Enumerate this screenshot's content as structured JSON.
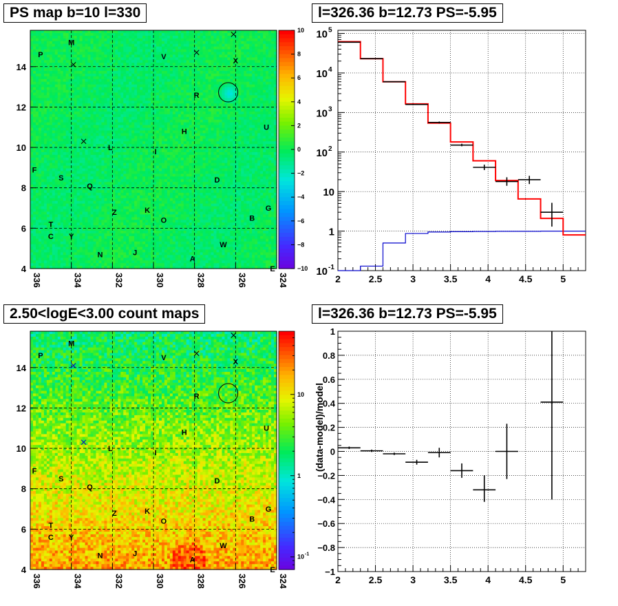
{
  "colors": {
    "data": "#000000",
    "model": "#ff0000",
    "background_model": "#0000cc",
    "circle": "#000000"
  },
  "panels": {
    "ps_map": {
      "title": "PS map b=10 l=330",
      "x_ticks": [
        "336",
        "334",
        "332",
        "330",
        "328",
        "326",
        "324"
      ],
      "y_ticks": [
        "4",
        "6",
        "8",
        "10",
        "12",
        "14"
      ],
      "xlim": [
        336,
        324
      ],
      "ylim": [
        4,
        15.8
      ],
      "colorbar": {
        "scale": "linear",
        "range": [
          -10,
          10
        ],
        "tick_labels": [
          "10",
          "8",
          "6",
          "4",
          "2",
          "0",
          "−2",
          "−4",
          "−6",
          "−8",
          "−10"
        ]
      }
    },
    "count_map": {
      "title": "2.50<logE<3.00 count maps",
      "x_ticks": [
        "336",
        "334",
        "332",
        "330",
        "328",
        "326",
        "324"
      ],
      "y_ticks": [
        "4",
        "6",
        "8",
        "10",
        "12",
        "14"
      ],
      "xlim": [
        336,
        324
      ],
      "ylim": [
        4,
        15.8
      ],
      "colorbar": {
        "scale": "log",
        "range": [
          0.07,
          60
        ],
        "tick_labels": [
          "10",
          "1",
          "10"
        ],
        "tick_exponents": [
          "",
          "",
          "-1"
        ]
      }
    },
    "spectrum": {
      "title": "l=326.36 b=12.73 PS=-5.95"
    },
    "residual": {
      "title": "l=326.36 b=12.73 PS=-5.95",
      "ylabel": "(data-model)/model"
    }
  },
  "sources": [
    {
      "label": "M",
      "l": 334.0,
      "b": 15.2
    },
    {
      "label": "P",
      "l": 335.5,
      "b": 14.6
    },
    {
      "label": "V",
      "l": 329.5,
      "b": 14.5
    },
    {
      "label": "X",
      "l": 326.0,
      "b": 14.3
    },
    {
      "label": "R",
      "l": 327.9,
      "b": 12.6
    },
    {
      "label": "H",
      "l": 328.5,
      "b": 10.8
    },
    {
      "label": "U",
      "l": 324.5,
      "b": 11.0
    },
    {
      "label": "L",
      "l": 332.1,
      "b": 10.0
    },
    {
      "label": "I",
      "l": 329.9,
      "b": 9.8
    },
    {
      "label": "F",
      "l": 335.8,
      "b": 8.9
    },
    {
      "label": "S",
      "l": 334.5,
      "b": 8.5
    },
    {
      "label": "Q",
      "l": 333.1,
      "b": 8.1
    },
    {
      "label": "D",
      "l": 326.9,
      "b": 8.4
    },
    {
      "label": "G",
      "l": 324.4,
      "b": 7.0
    },
    {
      "label": "Z",
      "l": 331.9,
      "b": 6.8
    },
    {
      "label": "K",
      "l": 330.3,
      "b": 6.9
    },
    {
      "label": "O",
      "l": 329.5,
      "b": 6.4
    },
    {
      "label": "B",
      "l": 325.2,
      "b": 6.5
    },
    {
      "label": "T",
      "l": 335.0,
      "b": 6.2
    },
    {
      "label": "C",
      "l": 335.0,
      "b": 5.6
    },
    {
      "label": "Y",
      "l": 334.0,
      "b": 5.6
    },
    {
      "label": "W",
      "l": 326.6,
      "b": 5.2
    },
    {
      "label": "N",
      "l": 332.6,
      "b": 4.7
    },
    {
      "label": "J",
      "l": 330.9,
      "b": 4.8
    },
    {
      "label": "A",
      "l": 328.1,
      "b": 4.5
    },
    {
      "label": "E",
      "l": 324.2,
      "b": 4.0
    }
  ],
  "crosses": [
    {
      "l": 333.9,
      "b": 14.1
    },
    {
      "l": 327.9,
      "b": 14.7
    },
    {
      "l": 326.1,
      "b": 15.6
    },
    {
      "l": 333.4,
      "b": 10.3
    }
  ],
  "highlight_circle": {
    "l": 326.36,
    "b": 12.73
  },
  "chart_data": [
    {
      "type": "line",
      "panel": "spectrum",
      "title": "l=326.36 b=12.73 PS=-5.95",
      "xlabel": "",
      "ylabel": "",
      "xlim": [
        2,
        5.3
      ],
      "ylim": [
        0.1,
        120000
      ],
      "y_scale": "log",
      "grid": true,
      "x_ticks": [
        "2",
        "2.5",
        "3",
        "3.5",
        "4",
        "4.5",
        "5"
      ],
      "y_ticks": [
        "10^-1",
        "1",
        "10",
        "10^2",
        "10^3",
        "10^4",
        "10^5"
      ],
      "series": [
        {
          "points": [
            {
              "x": 2.15,
              "y": 60000,
              "xerr": 0.15,
              "ylo": 59000,
              "yhi": 61000
            },
            {
              "x": 2.45,
              "y": 23000,
              "xerr": 0.15,
              "ylo": 22700,
              "yhi": 23300
            },
            {
              "x": 2.75,
              "y": 6000,
              "xerr": 0.15,
              "ylo": 5900,
              "yhi": 6100
            },
            {
              "x": 3.05,
              "y": 1600,
              "xerr": 0.15,
              "ylo": 1550,
              "yhi": 1650
            },
            {
              "x": 3.35,
              "y": 560,
              "xerr": 0.15,
              "ylo": 530,
              "yhi": 590
            },
            {
              "x": 3.65,
              "y": 150,
              "xerr": 0.15,
              "ylo": 140,
              "yhi": 162
            },
            {
              "x": 3.95,
              "y": 41,
              "xerr": 0.15,
              "ylo": 35,
              "yhi": 48
            },
            {
              "x": 4.25,
              "y": 18,
              "xerr": 0.15,
              "ylo": 14,
              "yhi": 23
            },
            {
              "x": 4.55,
              "y": 20,
              "xerr": 0.15,
              "ylo": 15.5,
              "yhi": 25
            },
            {
              "x": 4.85,
              "y": 3.0,
              "xerr": 0.15,
              "ylo": 1.3,
              "yhi": 5.2
            }
          ]
        },
        {
          "edges": [
            2.0,
            2.3,
            2.6,
            2.9,
            3.2,
            3.5,
            3.8,
            4.1,
            4.4,
            4.7,
            5.0,
            5.3
          ],
          "values": [
            62000,
            23000,
            6000,
            1650,
            540,
            180,
            60,
            19,
            6.5,
            2.1,
            0.8
          ]
        },
        {
          "edges": [
            2.0,
            2.3,
            2.6,
            2.9,
            3.2,
            3.5,
            3.8,
            4.1,
            4.4,
            4.7,
            5.0,
            5.3
          ],
          "values": [
            0.1,
            0.13,
            0.5,
            0.87,
            0.95,
            0.97,
            0.98,
            0.99,
            0.99,
            1.0,
            1.0
          ]
        }
      ]
    },
    {
      "type": "scatter",
      "panel": "residual",
      "title": "l=326.36 b=12.73 PS=-5.95",
      "xlabel": "",
      "ylabel": "(data-model)/model",
      "xlim": [
        2,
        5.3
      ],
      "ylim": [
        -1,
        1
      ],
      "grid": true,
      "x_ticks": [
        "2",
        "2.5",
        "3",
        "3.5",
        "4",
        "4.5",
        "5"
      ],
      "y_ticks": [
        "−1",
        "−0.8",
        "−0.6",
        "−0.4",
        "−0.2",
        "0",
        "0.2",
        "0.4",
        "0.6",
        "0.8",
        "1"
      ],
      "points": [
        {
          "x": 2.15,
          "y": 0.03,
          "xerr": 0.15,
          "ylo": 0.02,
          "yhi": 0.04
        },
        {
          "x": 2.45,
          "y": 0.005,
          "xerr": 0.15,
          "ylo": -0.005,
          "yhi": 0.015
        },
        {
          "x": 2.75,
          "y": -0.02,
          "xerr": 0.15,
          "ylo": -0.03,
          "yhi": -0.01
        },
        {
          "x": 3.05,
          "y": -0.09,
          "xerr": 0.15,
          "ylo": -0.11,
          "yhi": -0.07
        },
        {
          "x": 3.35,
          "y": -0.01,
          "xerr": 0.15,
          "ylo": -0.05,
          "yhi": 0.03
        },
        {
          "x": 3.65,
          "y": -0.16,
          "xerr": 0.15,
          "ylo": -0.22,
          "yhi": -0.1
        },
        {
          "x": 3.95,
          "y": -0.32,
          "xerr": 0.15,
          "ylo": -0.42,
          "yhi": -0.2
        },
        {
          "x": 4.25,
          "y": 0.0,
          "xerr": 0.15,
          "ylo": -0.23,
          "yhi": 0.23
        },
        {
          "x": 4.85,
          "y": 0.41,
          "xerr": 0.15,
          "ylo": -0.4,
          "yhi": 1.0
        }
      ]
    }
  ]
}
